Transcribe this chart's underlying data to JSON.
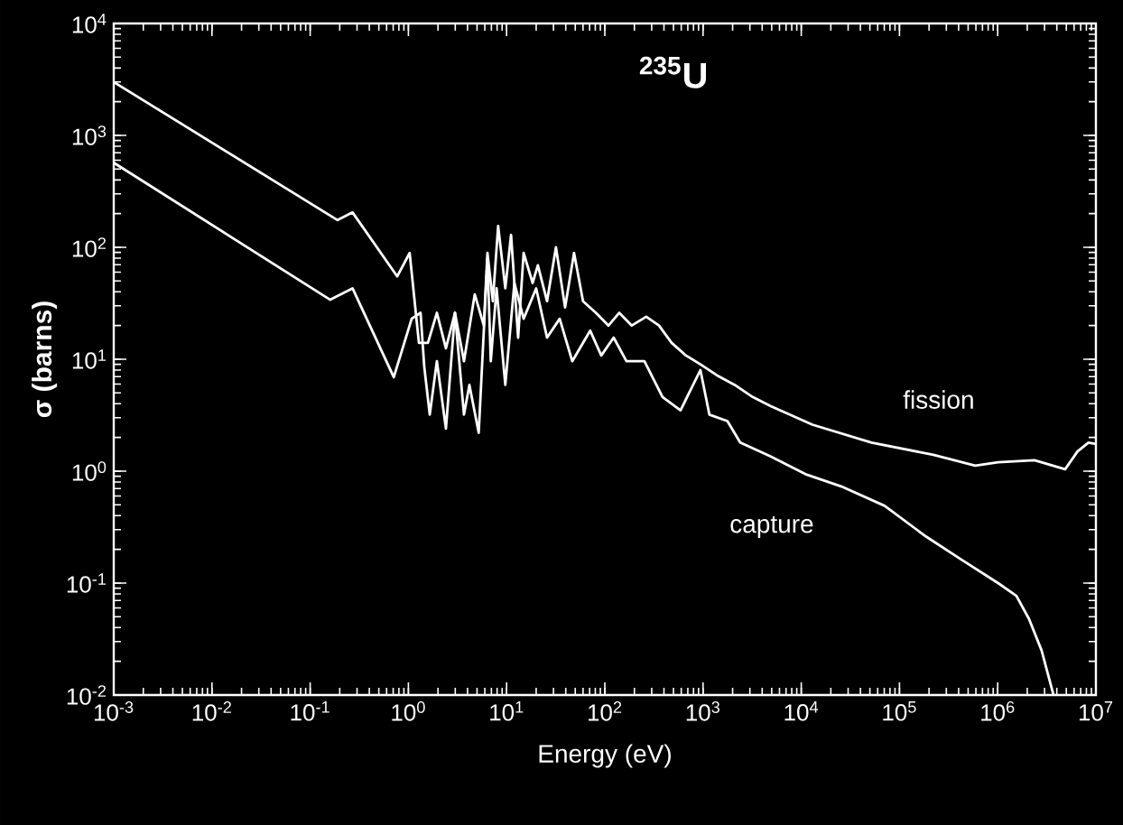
{
  "chart_data": {
    "type": "line",
    "title": "$^{235}$U",
    "xlabel": "Energy (eV)",
    "ylabel": "σ (barns)",
    "log": "xy",
    "xlim": [
      0.001,
      10000000
    ],
    "ylim": [
      0.01,
      10000
    ],
    "xticks": [
      {
        "value": 0.001,
        "label": "10$^{-3}$"
      },
      {
        "value": 0.01,
        "label": "10$^{-2}$"
      },
      {
        "value": 0.1,
        "label": "10$^{-1}$"
      },
      {
        "value": 1,
        "label": "10$^{0}$"
      },
      {
        "value": 10,
        "label": "10$^{1}$"
      },
      {
        "value": 100,
        "label": "10$^{2}$"
      },
      {
        "value": 1000,
        "label": "10$^{3}$"
      },
      {
        "value": 10000,
        "label": "10$^{4}$"
      },
      {
        "value": 100000,
        "label": "10$^{5}$"
      },
      {
        "value": 1000000,
        "label": "10$^{6}$"
      },
      {
        "value": 10000000,
        "label": "10$^{7}$"
      }
    ],
    "yticks": [
      {
        "value": 0.01,
        "label": "10$^{-2}$"
      },
      {
        "value": 0.1,
        "label": "10$^{-1}$"
      },
      {
        "value": 1,
        "label": "10$^{0}$"
      },
      {
        "value": 10,
        "label": "10$^{1}$"
      },
      {
        "value": 100,
        "label": "10$^{2}$"
      },
      {
        "value": 1000,
        "label": "10$^{3}$"
      },
      {
        "value": 10000,
        "label": "10$^{4}$"
      }
    ],
    "series": [
      {
        "name": "fission",
        "color": "#ffffff",
        "x": [
          0.001,
          0.19,
          0.27,
          0.77,
          1.03,
          1.28,
          1.58,
          1.95,
          2.41,
          2.98,
          3.68,
          4.74,
          5.86,
          6.38,
          7.24,
          8.2,
          9.7,
          11.1,
          13.1,
          14.9,
          18.4,
          20.8,
          25.8,
          31.8,
          39.4,
          48.6,
          60,
          81,
          109,
          140,
          188,
          264,
          356,
          479,
          670,
          940,
          1380,
          2100,
          3200,
          4900,
          13000,
          52000,
          221000,
          590000,
          1010000,
          2370000,
          4860000,
          6500000,
          8400000,
          10000000
        ],
        "values": [
          3000,
          175,
          205,
          55,
          89,
          14,
          14,
          26,
          12.5,
          26,
          9.6,
          38,
          20,
          89,
          33,
          155,
          43,
          129,
          15.6,
          89,
          48,
          69,
          33,
          100,
          29,
          89,
          33,
          26,
          20,
          26,
          20,
          24,
          20,
          14,
          10.8,
          9.0,
          7.2,
          5.9,
          4.6,
          3.8,
          2.6,
          1.8,
          1.4,
          1.12,
          1.2,
          1.25,
          1.04,
          1.5,
          1.8,
          1.75
        ]
      },
      {
        "name": "capture",
        "color": "#ffffff",
        "x": [
          0.001,
          0.16,
          0.27,
          0.71,
          1.08,
          1.33,
          1.45,
          1.65,
          1.95,
          2.41,
          2.98,
          3.68,
          4.18,
          5.2,
          6.38,
          6.9,
          7.9,
          9.7,
          12,
          14.9,
          20,
          25.8,
          34.7,
          46.6,
          71,
          92,
          123,
          166,
          253,
          387,
          590,
          940,
          1160,
          1770,
          2390,
          4900,
          11400,
          26700,
          70600,
          187000,
          436000,
          1010000,
          1550000,
          2080000,
          2800000,
          3700000
        ],
        "values": [
          570,
          34,
          43,
          6.9,
          23,
          26,
          8.6,
          3.2,
          9.6,
          2.4,
          26,
          3.2,
          5.9,
          2.2,
          80,
          9.6,
          43,
          5.9,
          48,
          23,
          43,
          15.6,
          23,
          9.6,
          18,
          10.8,
          15.6,
          9.6,
          9.6,
          4.6,
          3.5,
          8.0,
          3.2,
          2.8,
          1.8,
          1.35,
          0.93,
          0.72,
          0.49,
          0.26,
          0.16,
          0.1,
          0.077,
          0.048,
          0.025,
          0.01
        ]
      }
    ]
  }
}
